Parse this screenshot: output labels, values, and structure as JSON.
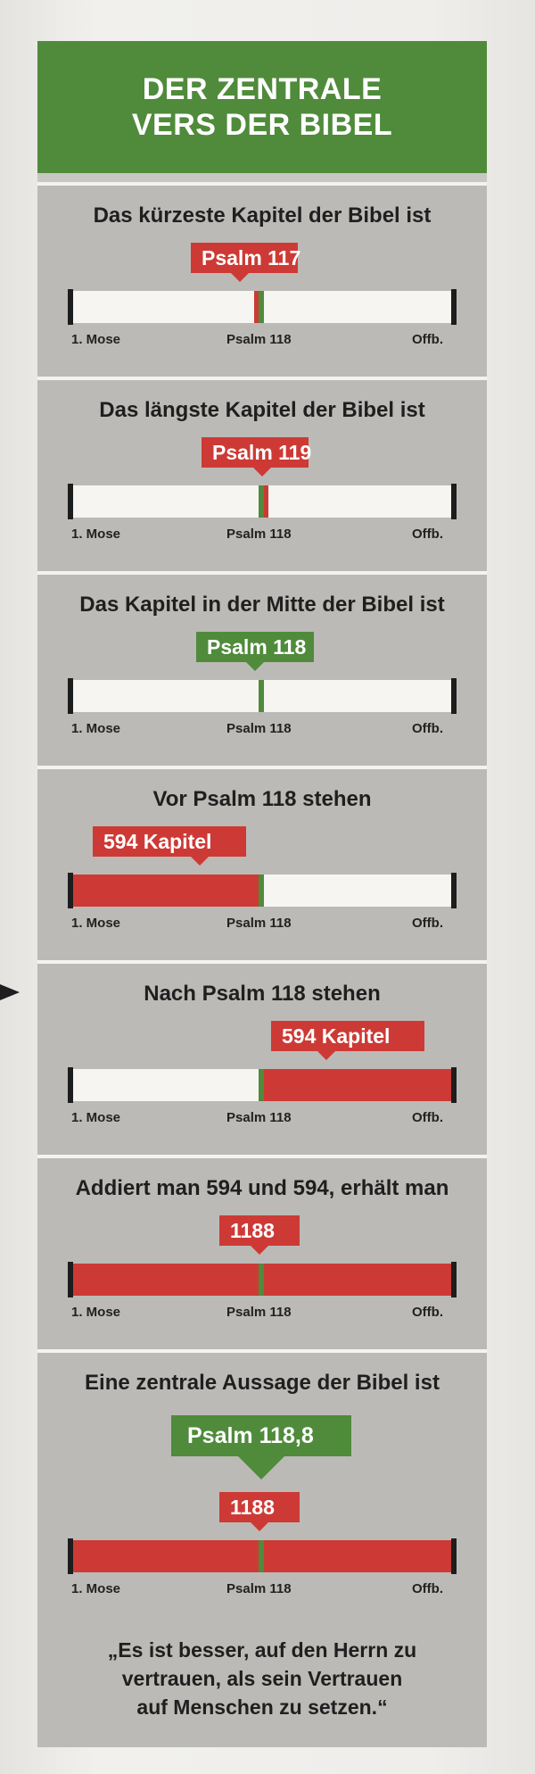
{
  "header": {
    "line1": "DER ZENTRALE",
    "line2": "VERS DER BIBEL"
  },
  "axis": {
    "start": "1. Mose",
    "middle": "Psalm 118",
    "end": "Offb."
  },
  "panels": [
    {
      "title": "Das kürzeste Kapitel der Bibel ist",
      "label": "Psalm 117"
    },
    {
      "title": "Das längste Kapitel der Bibel ist",
      "label": "Psalm 119"
    },
    {
      "title": "Das Kapitel in der Mitte der Bibel ist",
      "label": "Psalm 118"
    },
    {
      "title": "Vor Psalm 118 stehen",
      "label": "594 Kapitel"
    },
    {
      "title": "Nach Psalm 118 stehen",
      "label": "594 Kapitel"
    },
    {
      "title": "Addiert man 594 und 594, erhält man",
      "label": "1188"
    },
    {
      "title": "Eine zentrale Aussage der Bibel ist",
      "callout": "Psalm 118,8",
      "label": "1188"
    }
  ],
  "quote": {
    "line1": "„Es ist besser, auf den Herrn zu",
    "line2": "vertrauen, als sein Vertrauen",
    "line3": "auf Menschen zu setzen.“"
  },
  "colors": {
    "green": "#4f8b3b",
    "red": "#cd3a35",
    "panel": "#bcbab7"
  }
}
